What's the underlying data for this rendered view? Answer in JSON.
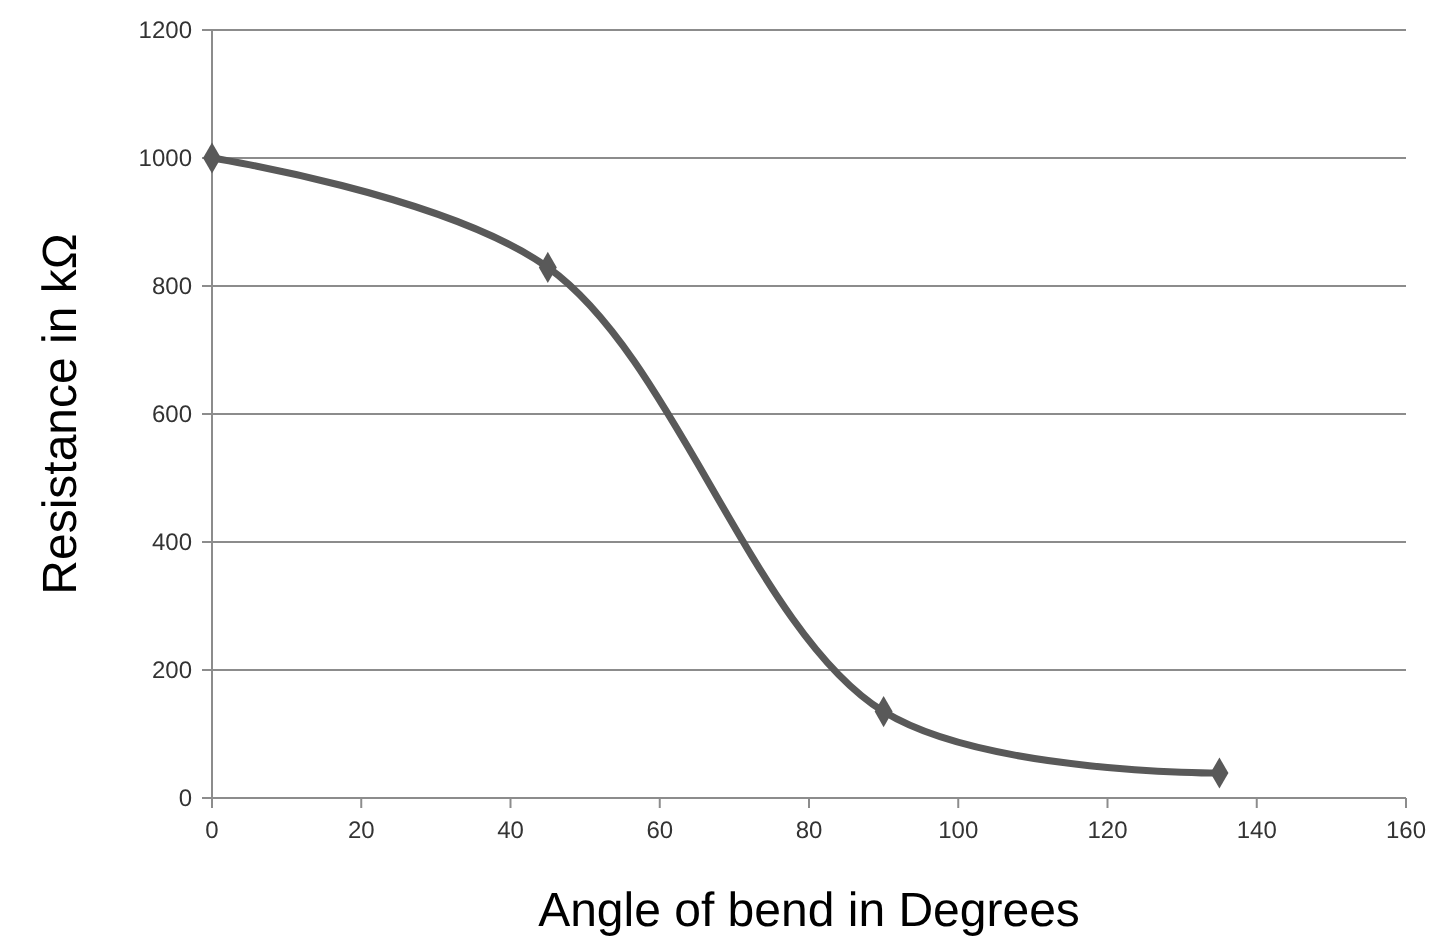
{
  "chart_data": {
    "type": "line",
    "xlabel": "Angle of bend in Degrees",
    "ylabel": "Resistance in kΩ",
    "x": [
      0,
      45,
      90,
      135
    ],
    "series": [
      {
        "color": "#595959",
        "values": [
          1000,
          829,
          135,
          39
        ]
      }
    ],
    "xlim": [
      0,
      160
    ],
    "xticks": [
      0,
      20,
      40,
      60,
      80,
      100,
      120,
      140,
      160
    ],
    "ylim": [
      0,
      1200
    ],
    "yticks": [
      0,
      200,
      400,
      600,
      800,
      1000,
      1200
    ],
    "grid": "y",
    "marker": "diamond",
    "line_style": "solid"
  }
}
